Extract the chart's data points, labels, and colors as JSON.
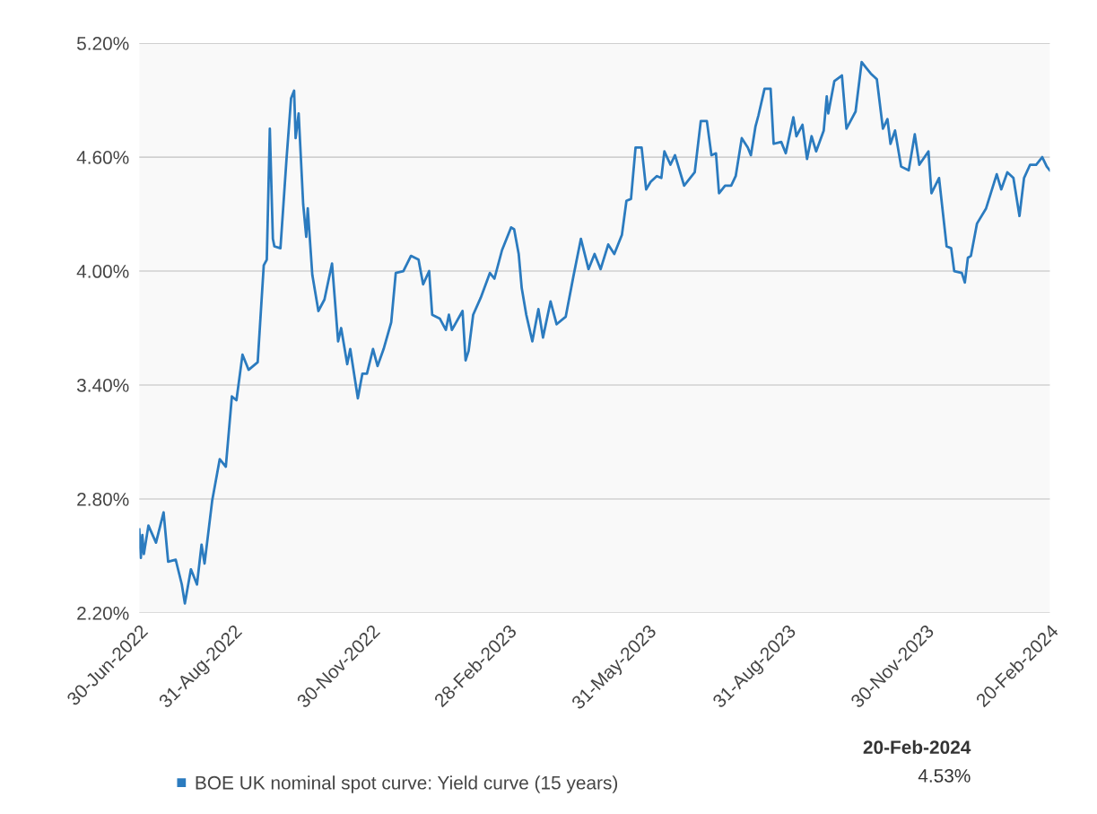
{
  "chart_data": {
    "type": "line",
    "x": [
      "2022-06-30",
      "2022-07-01",
      "2022-07-02",
      "2022-07-03",
      "2022-07-06",
      "2022-07-11",
      "2022-07-16",
      "2022-07-19",
      "2022-07-24",
      "2022-07-28",
      "2022-07-30",
      "2022-08-03",
      "2022-08-07",
      "2022-08-10",
      "2022-08-12",
      "2022-08-17",
      "2022-08-22",
      "2022-08-26",
      "2022-08-30",
      "2022-09-02",
      "2022-09-06",
      "2022-09-10",
      "2022-09-16",
      "2022-09-20",
      "2022-09-22",
      "2022-09-24",
      "2022-09-26",
      "2022-09-27",
      "2022-10-01",
      "2022-10-05",
      "2022-10-08",
      "2022-10-10",
      "2022-10-11",
      "2022-10-13",
      "2022-10-16",
      "2022-10-18",
      "2022-10-19",
      "2022-10-22",
      "2022-10-26",
      "2022-10-30",
      "2022-11-04",
      "2022-11-08",
      "2022-11-10",
      "2022-11-14",
      "2022-11-16",
      "2022-11-21",
      "2022-11-24",
      "2022-11-27",
      "2022-12-01",
      "2022-12-04",
      "2022-12-08",
      "2022-12-13",
      "2022-12-16",
      "2022-12-21",
      "2022-12-26",
      "2022-12-31",
      "2023-01-03",
      "2023-01-07",
      "2023-01-09",
      "2023-01-14",
      "2023-01-18",
      "2023-01-20",
      "2023-01-22",
      "2023-01-29",
      "2023-01-31",
      "2023-02-02",
      "2023-02-05",
      "2023-02-10",
      "2023-02-16",
      "2023-02-19",
      "2023-02-24",
      "2023-03-02",
      "2023-03-04",
      "2023-03-07",
      "2023-03-09",
      "2023-03-12",
      "2023-03-16",
      "2023-03-20",
      "2023-03-23",
      "2023-03-28",
      "2023-04-01",
      "2023-04-07",
      "2023-04-12",
      "2023-04-17",
      "2023-04-22",
      "2023-04-26",
      "2023-04-30",
      "2023-05-05",
      "2023-05-09",
      "2023-05-14",
      "2023-05-17",
      "2023-05-20",
      "2023-05-23",
      "2023-05-27",
      "2023-05-30",
      "2023-06-02",
      "2023-06-06",
      "2023-06-09",
      "2023-06-11",
      "2023-06-15",
      "2023-06-18",
      "2023-06-24",
      "2023-07-01",
      "2023-07-05",
      "2023-07-09",
      "2023-07-12",
      "2023-07-15",
      "2023-07-17",
      "2023-07-21",
      "2023-07-25",
      "2023-07-28",
      "2023-08-01",
      "2023-08-05",
      "2023-08-07",
      "2023-08-10",
      "2023-08-12",
      "2023-08-16",
      "2023-08-20",
      "2023-08-22",
      "2023-08-27",
      "2023-08-30",
      "2023-09-04",
      "2023-09-06",
      "2023-09-10",
      "2023-09-13",
      "2023-09-16",
      "2023-09-19",
      "2023-09-24",
      "2023-09-26",
      "2023-09-27",
      "2023-10-01",
      "2023-10-06",
      "2023-10-09",
      "2023-10-13",
      "2023-10-15",
      "2023-10-19",
      "2023-10-22",
      "2023-10-25",
      "2023-10-29",
      "2023-11-02",
      "2023-11-05",
      "2023-11-07",
      "2023-11-10",
      "2023-11-14",
      "2023-11-19",
      "2023-11-23",
      "2023-11-26",
      "2023-12-02",
      "2023-12-04",
      "2023-12-09",
      "2023-12-14",
      "2023-12-17",
      "2023-12-19",
      "2023-12-24",
      "2023-12-26",
      "2023-12-28",
      "2023-12-30",
      "2024-01-03",
      "2024-01-09",
      "2024-01-16",
      "2024-01-19",
      "2024-01-23",
      "2024-01-27",
      "2024-01-31",
      "2024-02-03",
      "2024-02-07",
      "2024-02-11",
      "2024-02-15",
      "2024-02-18",
      "2024-02-20"
    ],
    "series": [
      {
        "name": "BOE UK nominal spot curve: Yield curve (15 years)",
        "color": "#2b7bbf",
        "values": [
          2.64,
          2.49,
          2.61,
          2.51,
          2.66,
          2.57,
          2.73,
          2.47,
          2.48,
          2.35,
          2.25,
          2.43,
          2.35,
          2.56,
          2.46,
          2.79,
          3.01,
          2.97,
          3.34,
          3.32,
          3.56,
          3.48,
          3.52,
          4.03,
          4.06,
          4.75,
          4.17,
          4.13,
          4.12,
          4.59,
          4.91,
          4.95,
          4.7,
          4.83,
          4.35,
          4.18,
          4.33,
          3.98,
          3.79,
          3.85,
          4.04,
          3.63,
          3.7,
          3.51,
          3.59,
          3.33,
          3.46,
          3.46,
          3.59,
          3.5,
          3.59,
          3.73,
          3.99,
          4.0,
          4.08,
          4.06,
          3.93,
          4.0,
          3.77,
          3.75,
          3.69,
          3.77,
          3.69,
          3.79,
          3.53,
          3.58,
          3.77,
          3.86,
          3.99,
          3.96,
          4.11,
          4.23,
          4.22,
          4.09,
          3.91,
          3.77,
          3.63,
          3.8,
          3.65,
          3.84,
          3.72,
          3.76,
          3.97,
          4.17,
          4.01,
          4.09,
          4.01,
          4.14,
          4.09,
          4.19,
          4.37,
          4.38,
          4.65,
          4.65,
          4.43,
          4.47,
          4.5,
          4.49,
          4.63,
          4.56,
          4.61,
          4.45,
          4.52,
          4.79,
          4.79,
          4.61,
          4.62,
          4.41,
          4.45,
          4.45,
          4.5,
          4.7,
          4.65,
          4.61,
          4.76,
          4.82,
          4.96,
          4.96,
          4.67,
          4.68,
          4.62,
          4.81,
          4.71,
          4.77,
          4.59,
          4.71,
          4.63,
          4.74,
          4.92,
          4.83,
          5.0,
          5.03,
          4.75,
          4.81,
          4.84,
          5.1,
          5.07,
          5.04,
          5.01,
          4.75,
          4.8,
          4.67,
          4.74,
          4.55,
          4.53,
          4.72,
          4.56,
          4.63,
          4.41,
          4.49,
          4.13,
          4.12,
          4.0,
          3.99,
          3.94,
          4.07,
          4.08,
          4.25,
          4.33,
          4.51,
          4.43,
          4.52,
          4.49,
          4.29,
          4.49,
          4.56,
          4.56,
          4.6,
          4.55,
          4.53
        ]
      }
    ],
    "xlim": [
      "2022-06-30",
      "2024-02-20"
    ],
    "xticks": [
      {
        "value": "2022-06-30",
        "label": "30-Jun-2022"
      },
      {
        "value": "2022-08-31",
        "label": "31-Aug-2022"
      },
      {
        "value": "2022-11-30",
        "label": "30-Nov-2022"
      },
      {
        "value": "2023-02-28",
        "label": "28-Feb-2023"
      },
      {
        "value": "2023-05-31",
        "label": "31-May-2023"
      },
      {
        "value": "2023-08-31",
        "label": "31-Aug-2023"
      },
      {
        "value": "2023-11-30",
        "label": "30-Nov-2023"
      },
      {
        "value": "2024-02-20",
        "label": "20-Feb-2024"
      }
    ],
    "ylim": [
      2.2,
      5.2
    ],
    "yticks": [
      {
        "value": 2.2,
        "label": "2.20%"
      },
      {
        "value": 2.8,
        "label": "2.80%"
      },
      {
        "value": 3.4,
        "label": "3.40%"
      },
      {
        "value": 4.0,
        "label": "4.00%"
      },
      {
        "value": 4.6,
        "label": "4.60%"
      },
      {
        "value": 5.2,
        "label": "5.20%"
      }
    ],
    "grid": "y",
    "legend": "bottom",
    "marker": "none",
    "line_style": "solid",
    "annotations": [
      "20-Feb-2024",
      "4.53%"
    ]
  }
}
